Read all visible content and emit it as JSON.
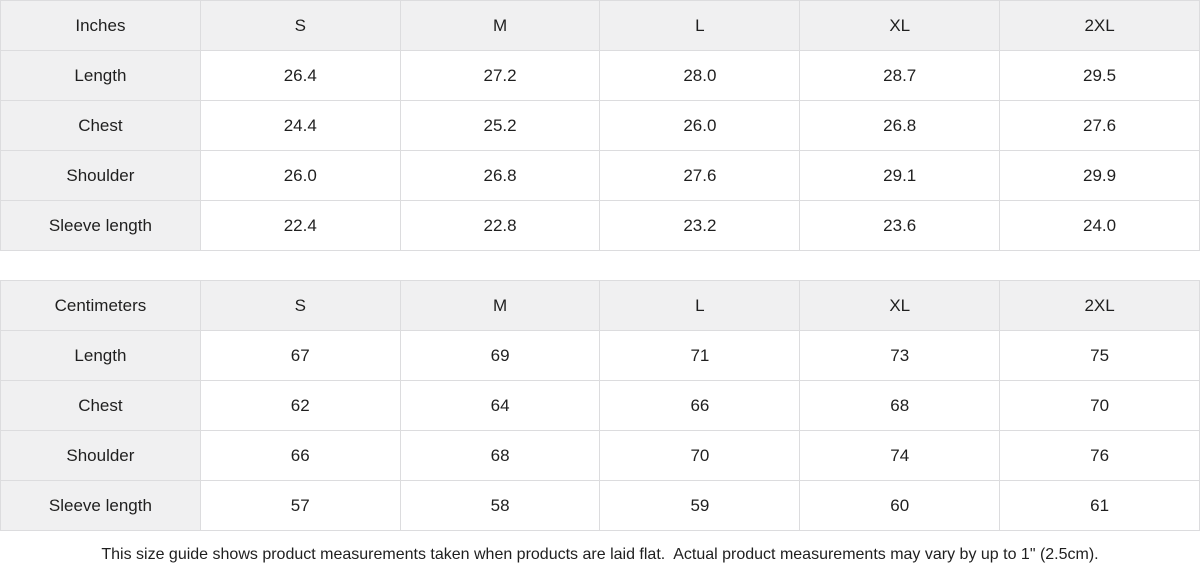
{
  "table_inches": {
    "header": [
      "Inches",
      "S",
      "M",
      "L",
      "XL",
      "2XL"
    ],
    "rows": [
      {
        "label": "Length",
        "values": [
          "26.4",
          "27.2",
          "28.0",
          "28.7",
          "29.5"
        ]
      },
      {
        "label": "Chest",
        "values": [
          "24.4",
          "25.2",
          "26.0",
          "26.8",
          "27.6"
        ]
      },
      {
        "label": "Shoulder",
        "values": [
          "26.0",
          "26.8",
          "27.6",
          "29.1",
          "29.9"
        ]
      },
      {
        "label": "Sleeve length",
        "values": [
          "22.4",
          "22.8",
          "23.2",
          "23.6",
          "24.0"
        ]
      }
    ]
  },
  "table_centimeters": {
    "header": [
      "Centimeters",
      "S",
      "M",
      "L",
      "XL",
      "2XL"
    ],
    "rows": [
      {
        "label": "Length",
        "values": [
          "67",
          "69",
          "71",
          "73",
          "75"
        ]
      },
      {
        "label": "Chest",
        "values": [
          "62",
          "64",
          "66",
          "68",
          "70"
        ]
      },
      {
        "label": "Shoulder",
        "values": [
          "66",
          "68",
          "70",
          "74",
          "76"
        ]
      },
      {
        "label": "Sleeve length",
        "values": [
          "57",
          "58",
          "59",
          "60",
          "61"
        ]
      }
    ]
  },
  "footer": {
    "note": "This size guide shows product measurements taken when products are laid flat.  Actual product measurements may vary by up to 1\" (2.5cm)."
  },
  "colors": {
    "header_bg": "#f0f0f1",
    "cell_bg": "#ffffff",
    "border": "#dcdcde",
    "text": "#1f1f1f"
  }
}
